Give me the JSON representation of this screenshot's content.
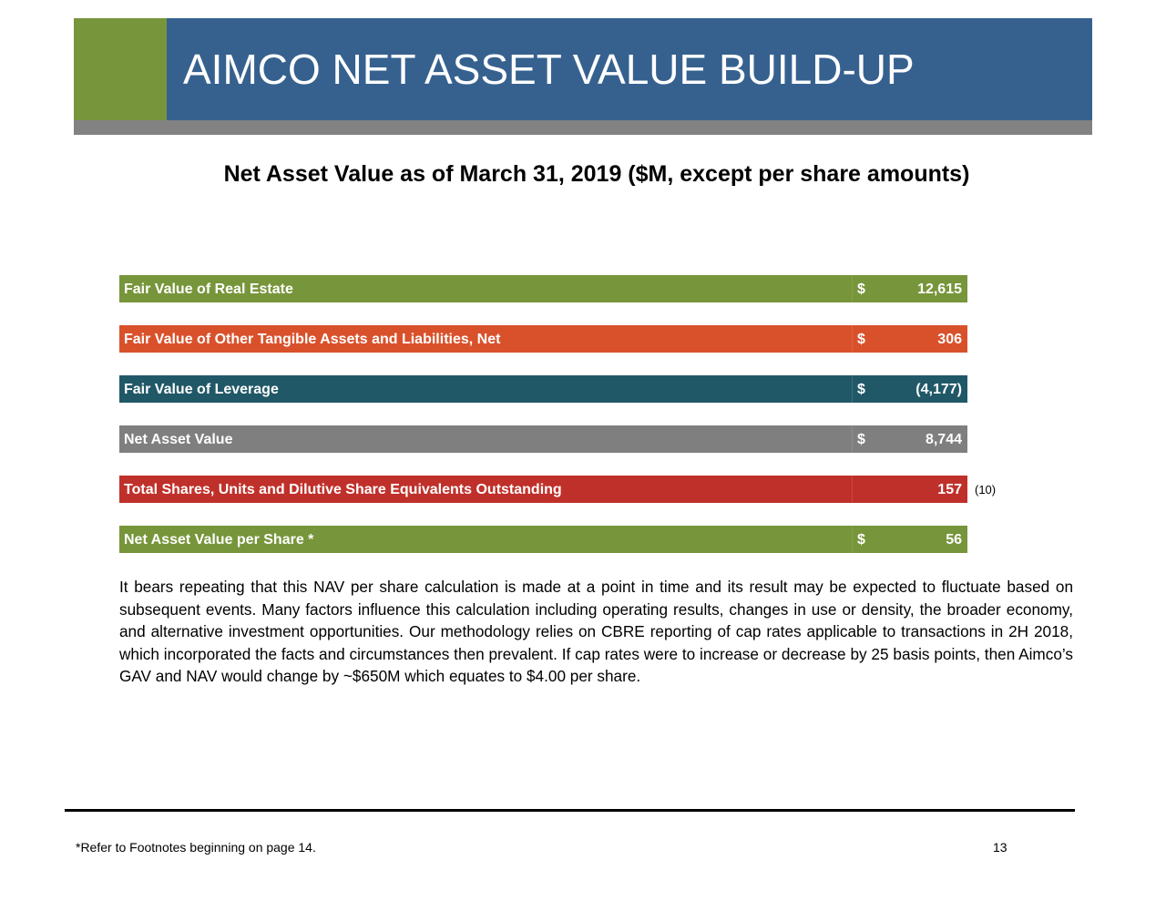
{
  "header": {
    "title": "AIMCO NET ASSET VALUE BUILD-UP"
  },
  "subtitle": "Net Asset Value as of March 31, 2019 ($M, except per share amounts)",
  "rows": [
    {
      "label": "Fair Value of Real Estate",
      "currency": "$",
      "value": "12,615",
      "color": "#77953a"
    },
    {
      "label": "Fair Value of Other Tangible Assets and Liabilities, Net",
      "currency": "$",
      "value": "306",
      "color": "#d9512b"
    },
    {
      "label": "Fair Value of Leverage",
      "currency": "$",
      "value": "(4,177)",
      "color": "#215868"
    },
    {
      "label": "Net Asset Value",
      "currency": "$",
      "value": "8,744",
      "color": "#7f7f7f"
    },
    {
      "label": "Total Shares, Units and Dilutive Share Equivalents Outstanding",
      "currency": "",
      "value": "157",
      "note": "(10)",
      "color": "#c0302a"
    },
    {
      "label": "Net Asset Value per Share *",
      "currency": "$",
      "value": "56",
      "color": "#77953a"
    }
  ],
  "paragraph": "It bears repeating that this NAV per share calculation is made at a point in time and its result may be expected to fluctuate based on subsequent events. Many factors influence this calculation including operating results, changes in use or density, the broader economy, and alternative investment opportunities. Our methodology relies on CBRE reporting of cap rates applicable to transactions in 2H 2018, which incorporated the facts and circumstances then prevalent. If cap rates were to increase or decrease by 25 basis points, then Aimco’s GAV and NAV would change by ~$650M which equates to $4.00 per share.",
  "footer": {
    "note": "*Refer to Footnotes beginning on page 14.",
    "page": "13"
  }
}
